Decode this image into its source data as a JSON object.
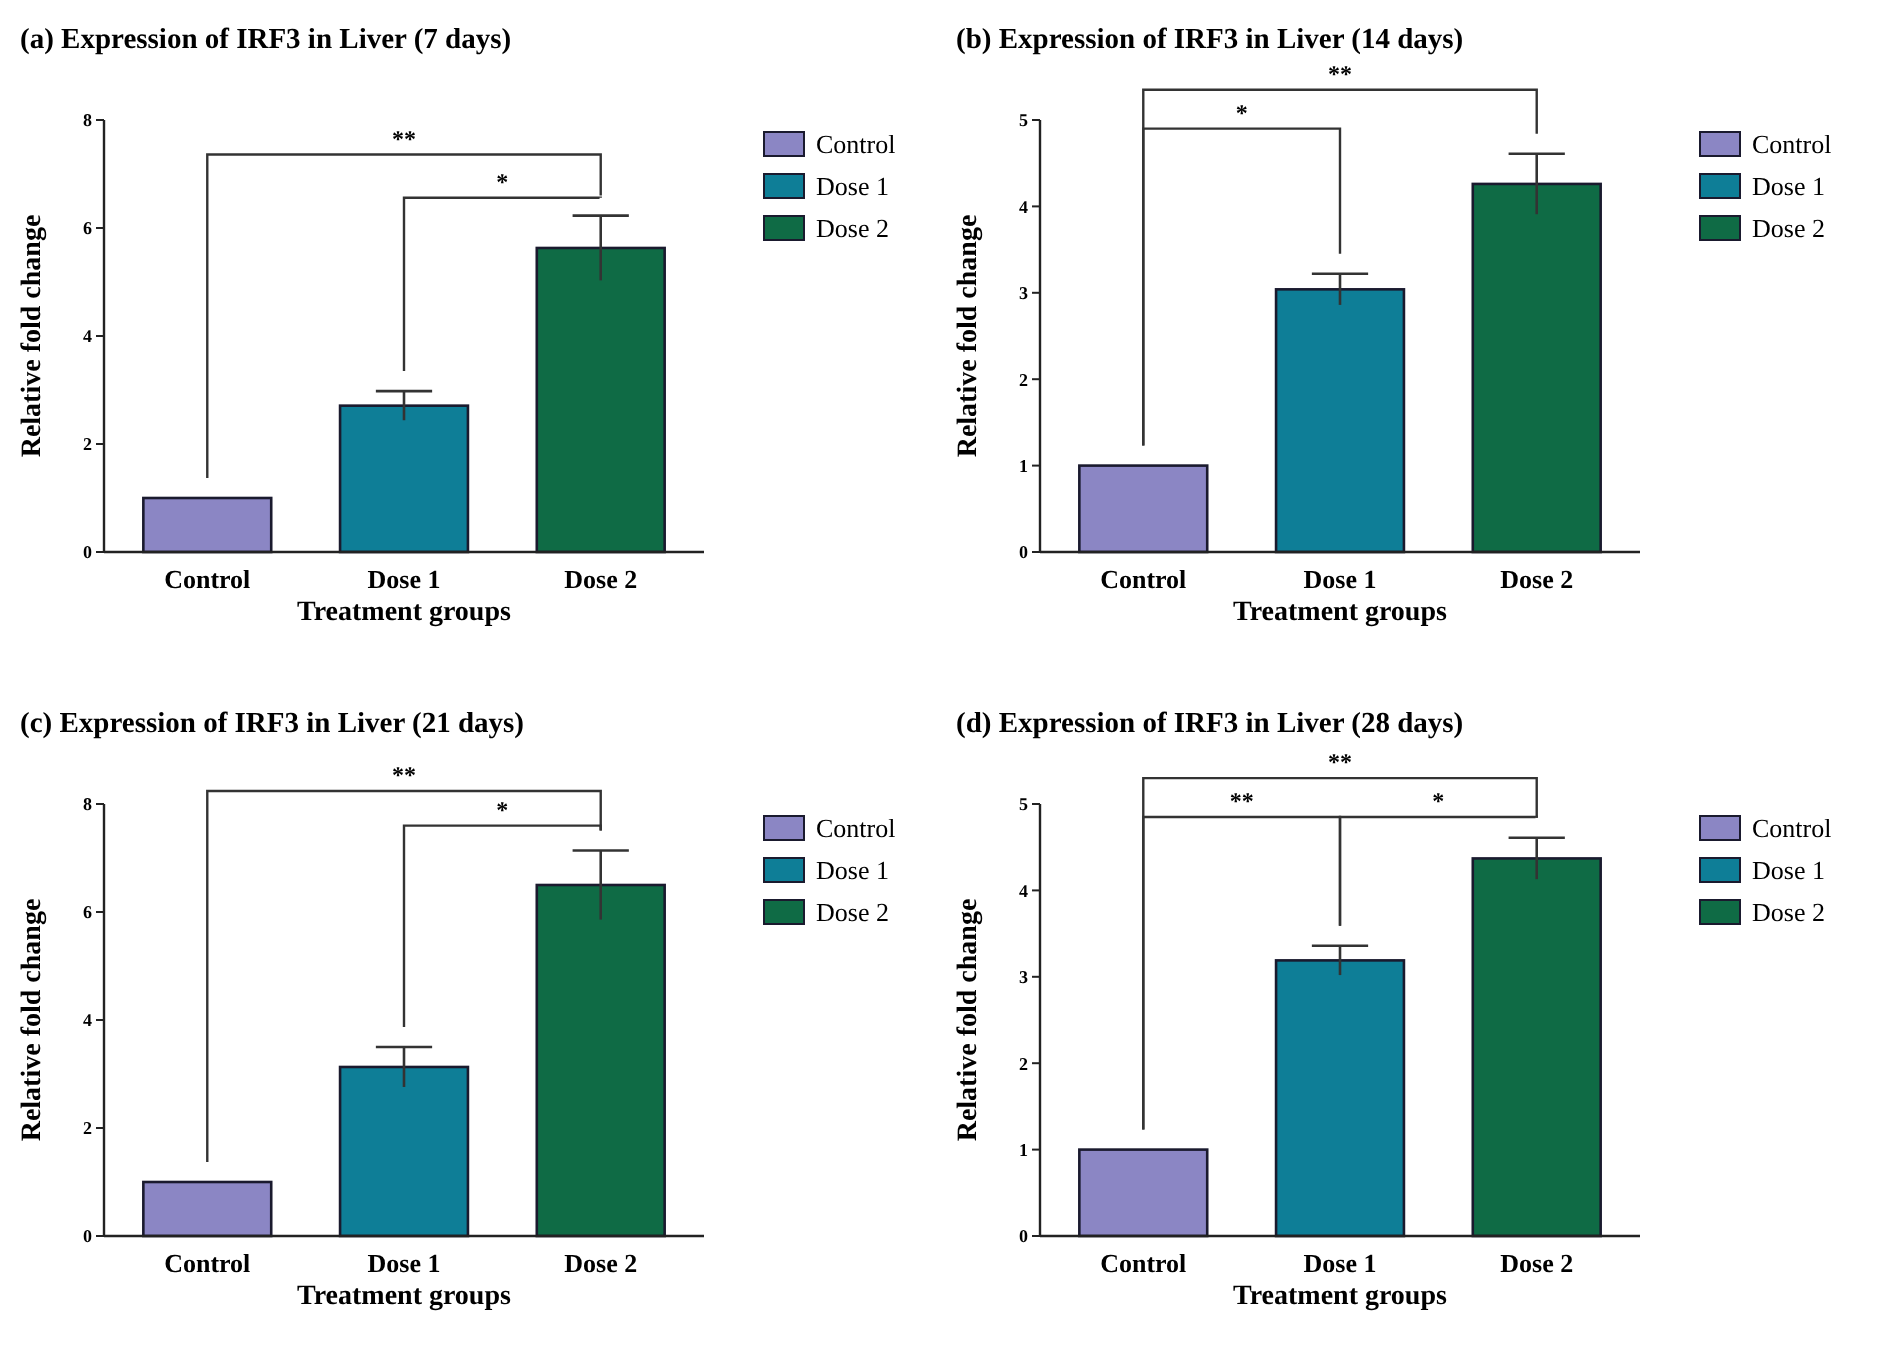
{
  "chart_data": [
    {
      "type": "bar",
      "title": "(a) Expression of IRF3 in Liver (7 days)",
      "xlabel": "Treatment groups",
      "ylabel": "Relative fold change",
      "categories": [
        "Control",
        "Dose 1",
        "Dose 2"
      ],
      "series": [
        {
          "name": "Control",
          "color": "#8b86c4",
          "values": [
            1,
            null,
            null
          ]
        },
        {
          "name": "Dose 1",
          "color": "#0e7e97",
          "values": [
            null,
            2.71,
            null
          ],
          "errors": [
            null,
            0.27,
            null
          ]
        },
        {
          "name": "Dose 2",
          "color": "#0f6b45",
          "values": [
            null,
            null,
            5.63
          ],
          "errors": [
            null,
            null,
            0.6
          ]
        }
      ],
      "ylim": [
        0,
        8
      ],
      "yticks": [
        0,
        2,
        4,
        6,
        8
      ],
      "legend": "right",
      "annotations": [
        "**",
        "*"
      ]
    },
    {
      "type": "bar",
      "title": "(b) Expression of IRF3 in Liver (14 days)",
      "xlabel": "Treatment groups",
      "ylabel": "Relative fold change",
      "categories": [
        "Control",
        "Dose 1",
        "Dose 2"
      ],
      "series": [
        {
          "name": "Control",
          "color": "#8b86c4",
          "values": [
            1,
            null,
            null
          ]
        },
        {
          "name": "Dose 1",
          "color": "#0e7e97",
          "values": [
            null,
            3.04,
            null
          ],
          "errors": [
            null,
            0.18,
            null
          ]
        },
        {
          "name": "Dose 2",
          "color": "#0f6b45",
          "values": [
            null,
            null,
            4.26
          ],
          "errors": [
            null,
            null,
            0.35
          ]
        }
      ],
      "ylim": [
        0,
        5
      ],
      "yticks": [
        0,
        1,
        2,
        3,
        4,
        5
      ],
      "legend": "right",
      "annotations": [
        "**",
        "*"
      ]
    },
    {
      "type": "bar",
      "title": "(c) Expression of IRF3 in Liver (21 days)",
      "xlabel": "Treatment groups",
      "ylabel": "Relative fold change",
      "categories": [
        "Control",
        "Dose 1",
        "Dose 2"
      ],
      "series": [
        {
          "name": "Control",
          "color": "#8b86c4",
          "values": [
            1,
            null,
            null
          ]
        },
        {
          "name": "Dose 1",
          "color": "#0e7e97",
          "values": [
            null,
            3.13,
            null
          ],
          "errors": [
            null,
            0.37,
            null
          ]
        },
        {
          "name": "Dose 2",
          "color": "#0f6b45",
          "values": [
            null,
            null,
            6.5
          ],
          "errors": [
            null,
            null,
            0.64
          ]
        }
      ],
      "ylim": [
        0,
        8
      ],
      "yticks": [
        0,
        2,
        4,
        6,
        8
      ],
      "legend": "right",
      "annotations": [
        "**",
        "*"
      ]
    },
    {
      "type": "bar",
      "title": "(d) Expression of IRF3 in Liver (28 days)",
      "xlabel": "Treatment groups",
      "ylabel": "Relative fold change",
      "categories": [
        "Control",
        "Dose 1",
        "Dose 2"
      ],
      "series": [
        {
          "name": "Control",
          "color": "#8b86c4",
          "values": [
            1,
            null,
            null
          ]
        },
        {
          "name": "Dose 1",
          "color": "#0e7e97",
          "values": [
            null,
            3.19,
            null
          ],
          "errors": [
            null,
            0.17,
            null
          ]
        },
        {
          "name": "Dose 2",
          "color": "#0f6b45",
          "values": [
            null,
            null,
            4.37
          ],
          "errors": [
            null,
            null,
            0.24
          ]
        }
      ],
      "ylim": [
        0,
        5
      ],
      "yticks": [
        0,
        1,
        2,
        3,
        4,
        5
      ],
      "legend": "right",
      "annotations": [
        "**",
        "**",
        "*"
      ]
    }
  ]
}
